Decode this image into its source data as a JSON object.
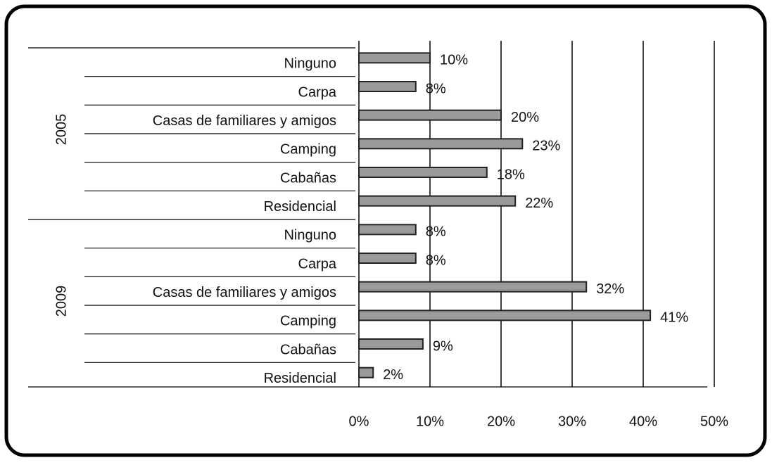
{
  "chart_data": {
    "type": "bar",
    "orientation": "horizontal",
    "color": "#9a9a9a",
    "groups": [
      {
        "name": "2005",
        "categories": [
          "Ninguno",
          "Carpa",
          "Casas de familiares y amigos",
          "Camping",
          "Cabañas",
          "Residencial"
        ],
        "values": [
          10,
          8,
          20,
          23,
          18,
          22
        ],
        "value_labels": [
          "10%",
          "8%",
          "20%",
          "23%",
          "18%",
          "22%"
        ]
      },
      {
        "name": "2009",
        "categories": [
          "Ninguno",
          "Carpa",
          "Casas de familiares y amigos",
          "Camping",
          "Cabañas",
          "Residencial"
        ],
        "values": [
          8,
          8,
          32,
          41,
          9,
          2
        ],
        "value_labels": [
          "8%",
          "8%",
          "32%",
          "41%",
          "9%",
          "2%"
        ]
      }
    ],
    "xlim": [
      0,
      50
    ],
    "xticks": [
      {
        "value": 0,
        "label": "0%"
      },
      {
        "value": 10,
        "label": "10%"
      },
      {
        "value": 20,
        "label": "20%"
      },
      {
        "value": 30,
        "label": "30%"
      },
      {
        "value": 40,
        "label": "40%"
      },
      {
        "value": 50,
        "label": "50%"
      }
    ],
    "grid": true
  }
}
